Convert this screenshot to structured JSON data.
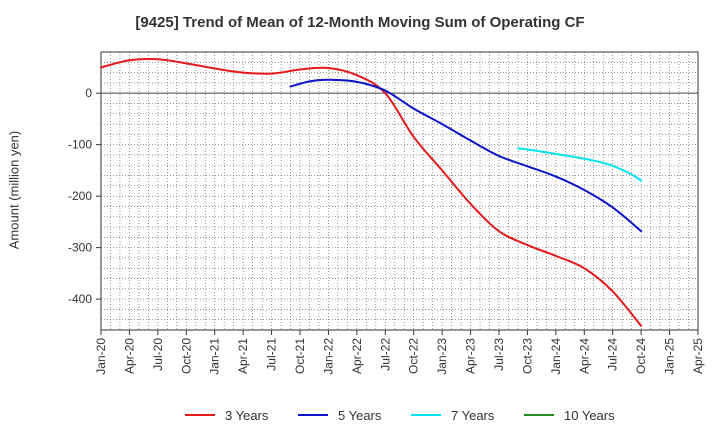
{
  "chart_data": {
    "type": "line",
    "title": "[9425]  Trend of Mean of 12-Month Moving Sum of Operating CF",
    "xlabel": "",
    "ylabel": "Amount (million yen)",
    "ylim": [
      -460,
      80
    ],
    "yticks": [
      0,
      -100,
      -200,
      -300,
      -400
    ],
    "xticks": [
      "Jan-20",
      "Apr-20",
      "Jul-20",
      "Oct-20",
      "Jan-21",
      "Apr-21",
      "Jul-21",
      "Oct-21",
      "Jan-22",
      "Apr-22",
      "Jul-22",
      "Oct-22",
      "Jan-23",
      "Apr-23",
      "Jul-23",
      "Oct-23",
      "Jan-24",
      "Apr-24",
      "Jul-24",
      "Oct-24",
      "Jan-25",
      "Apr-25"
    ],
    "x_unit": "months since Jan-20",
    "grid": true,
    "legend_position": "bottom",
    "series": [
      {
        "name": "3 Years",
        "color": "#e31a1c",
        "x": [
          0,
          3,
          6,
          9,
          12,
          15,
          18,
          21,
          24,
          27,
          30,
          33,
          36,
          39,
          42,
          45,
          48,
          51,
          54,
          57
        ],
        "values": [
          50,
          64,
          66,
          58,
          48,
          40,
          38,
          46,
          49,
          35,
          0,
          -85,
          -150,
          -215,
          -268,
          -295,
          -316,
          -340,
          -385,
          -452
        ]
      },
      {
        "name": "5 Years",
        "color": "#0a14c8",
        "x": [
          20,
          22,
          24,
          27,
          30,
          33,
          36,
          39,
          42,
          45,
          48,
          51,
          54,
          57
        ],
        "values": [
          13,
          23,
          26,
          22,
          5,
          -30,
          -60,
          -92,
          -122,
          -142,
          -162,
          -188,
          -222,
          -268
        ]
      },
      {
        "name": "7 Years",
        "color": "#00e5ee",
        "x": [
          44,
          46,
          48,
          50,
          52,
          54,
          56,
          57
        ],
        "values": [
          -107,
          -112,
          -118,
          -124,
          -131,
          -141,
          -158,
          -170
        ]
      },
      {
        "name": "10 Years",
        "color": "#228b22",
        "x": [],
        "values": []
      }
    ]
  }
}
